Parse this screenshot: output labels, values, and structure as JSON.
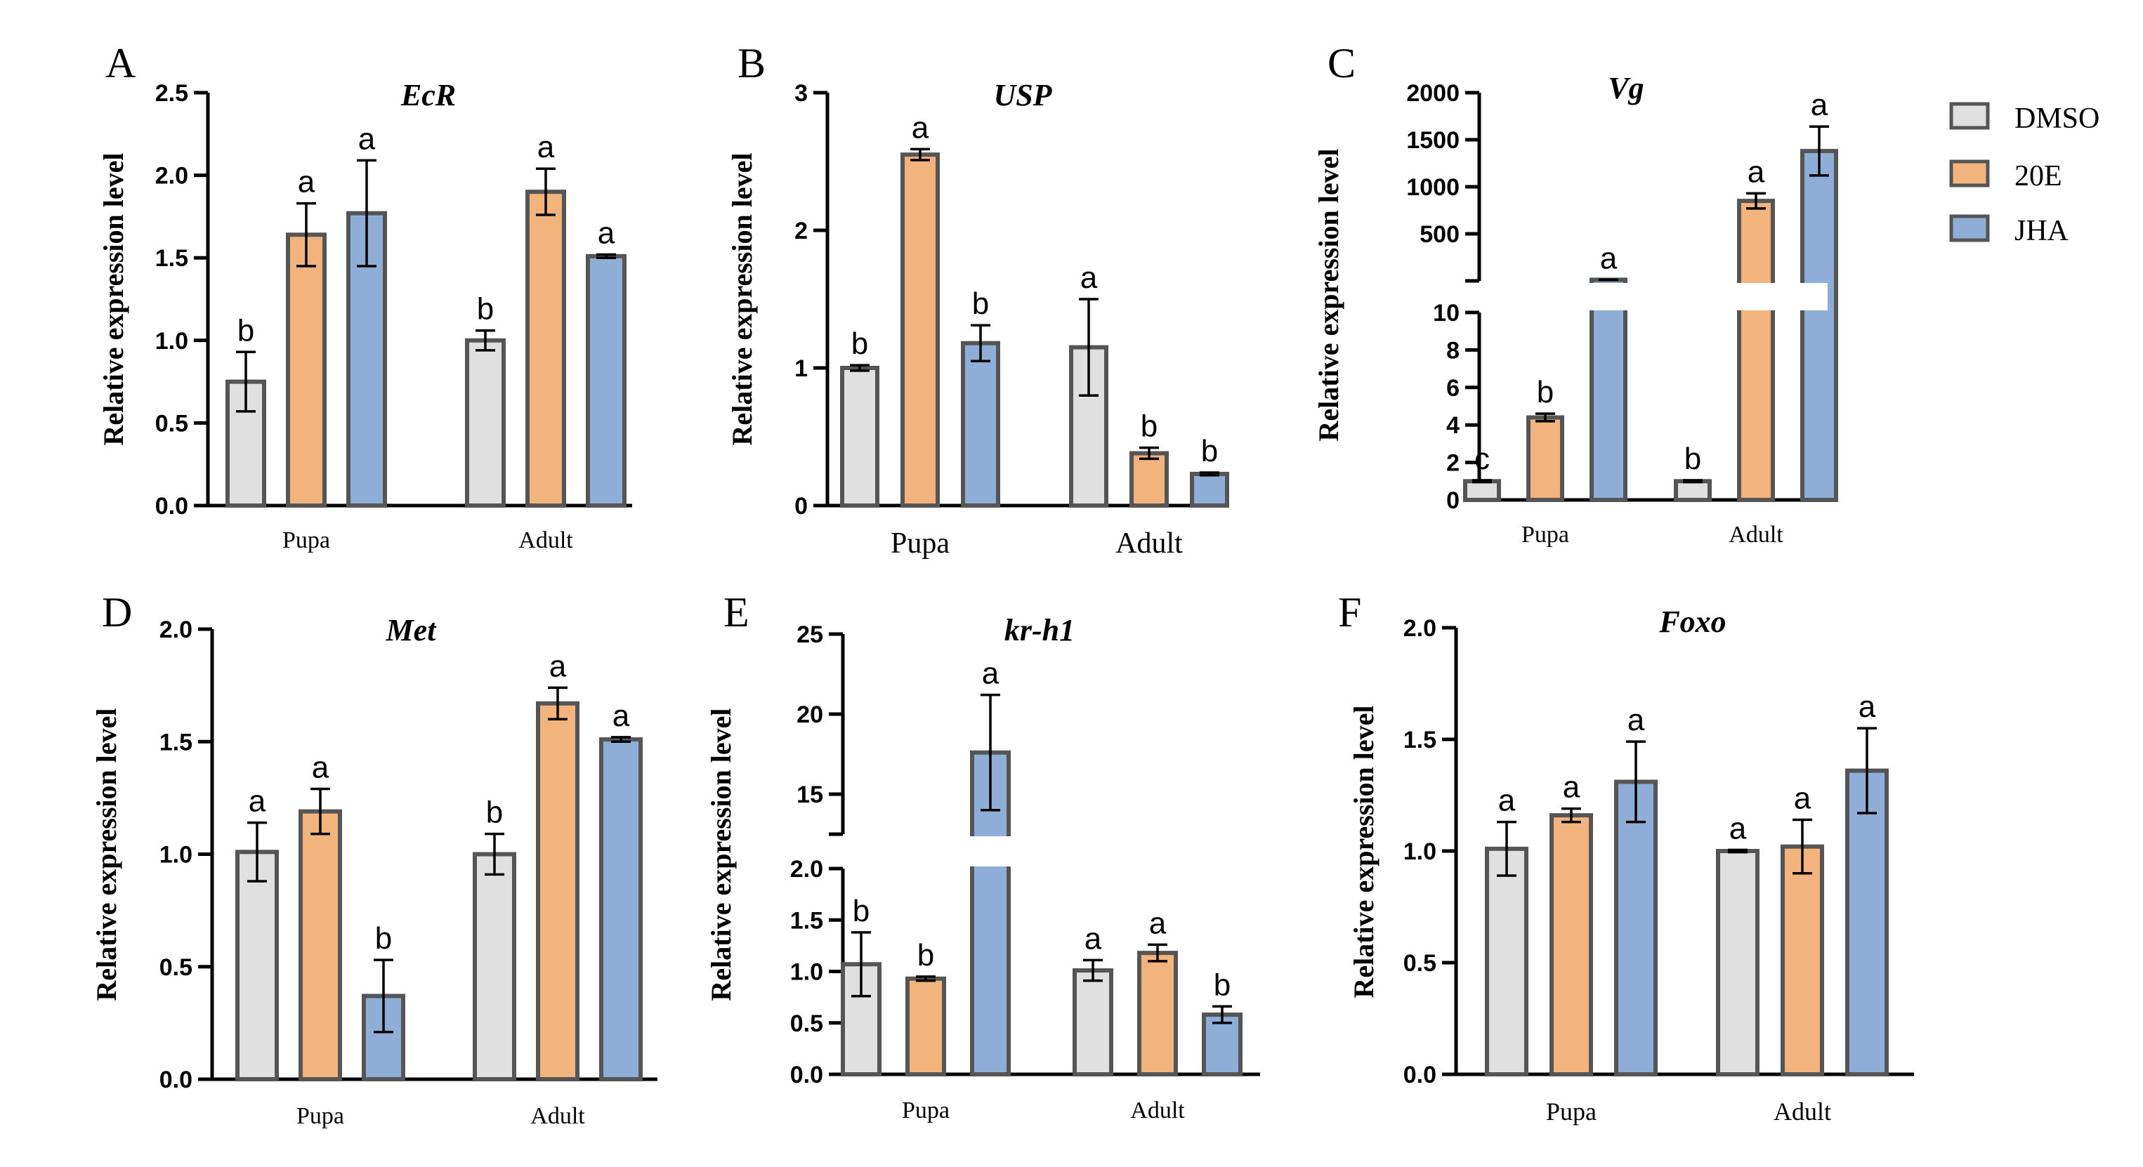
{
  "legend": [
    {
      "name": "DMSO",
      "color": "#e0e0e0"
    },
    {
      "name": "20E",
      "color": "#f2b47c"
    },
    {
      "name": "JHA",
      "color": "#8eaed8"
    }
  ],
  "chart_data": [
    {
      "type": "bar",
      "panel": "A",
      "title": "EcR",
      "ylabel": "Relative expression level",
      "xlabel": "",
      "categories": [
        "Pupa",
        "Adult"
      ],
      "ylim": [
        0,
        2.5
      ],
      "yticks": [
        "0.0",
        "0.5",
        "1.0",
        "1.5",
        "2.0",
        "2.5"
      ],
      "series": [
        {
          "name": "DMSO",
          "values": [
            0.75,
            1.0
          ],
          "errors": [
            0.18,
            0.06
          ],
          "letters": [
            "b",
            "b"
          ]
        },
        {
          "name": "20E",
          "values": [
            1.64,
            1.9
          ],
          "errors": [
            0.19,
            0.14
          ],
          "letters": [
            "a",
            "a"
          ]
        },
        {
          "name": "JHA",
          "values": [
            1.77,
            1.51
          ],
          "errors": [
            0.32,
            0.01
          ],
          "letters": [
            "a",
            "a"
          ]
        }
      ]
    },
    {
      "type": "bar",
      "panel": "B",
      "title": "USP",
      "ylabel": "Relative expression level",
      "xlabel": "",
      "categories": [
        "Pupa",
        "Adult"
      ],
      "ylim": [
        0,
        3
      ],
      "yticks": [
        "0",
        "1",
        "2",
        "3"
      ],
      "series": [
        {
          "name": "DMSO",
          "values": [
            1.0,
            1.15
          ],
          "errors": [
            0.02,
            0.35
          ],
          "letters": [
            "b",
            "a"
          ]
        },
        {
          "name": "20E",
          "values": [
            2.55,
            0.38
          ],
          "errors": [
            0.04,
            0.04
          ],
          "letters": [
            "a",
            "b"
          ]
        },
        {
          "name": "JHA",
          "values": [
            1.18,
            0.23
          ],
          "errors": [
            0.13,
            0.01
          ],
          "letters": [
            "b",
            "b"
          ]
        }
      ]
    },
    {
      "type": "bar",
      "panel": "C",
      "title": "Vg",
      "ylabel": "Relative expression level",
      "xlabel": "",
      "categories": [
        "Pupa",
        "Adult"
      ],
      "broken_axis": {
        "lower": [
          0,
          10
        ],
        "upper": [
          0,
          2000
        ]
      },
      "yticks_lower": [
        "0",
        "2",
        "4",
        "6",
        "8",
        "10"
      ],
      "yticks_upper": [
        "500",
        "1000",
        "1500",
        "2000"
      ],
      "series": [
        {
          "name": "DMSO",
          "values": [
            1.0,
            1.0
          ],
          "errors": [
            0.05,
            0.05
          ],
          "letters": [
            "c",
            "b"
          ]
        },
        {
          "name": "20E",
          "values": [
            4.4,
            850
          ],
          "errors": [
            0.2,
            80
          ],
          "letters": [
            "b",
            "a"
          ]
        },
        {
          "name": "JHA",
          "values": [
            12,
            1380
          ],
          "errors": [
            0.3,
            260
          ],
          "letters": [
            "a",
            "a"
          ]
        }
      ]
    },
    {
      "type": "bar",
      "panel": "D",
      "title": "Met",
      "ylabel": "Relative expression level",
      "xlabel": "",
      "categories": [
        "Pupa",
        "Adult"
      ],
      "ylim": [
        0,
        2.0
      ],
      "yticks": [
        "0.0",
        "0.5",
        "1.0",
        "1.5",
        "2.0"
      ],
      "series": [
        {
          "name": "DMSO",
          "values": [
            1.01,
            1.0
          ],
          "errors": [
            0.13,
            0.09
          ],
          "letters": [
            "a",
            "b"
          ]
        },
        {
          "name": "20E",
          "values": [
            1.19,
            1.67
          ],
          "errors": [
            0.1,
            0.07
          ],
          "letters": [
            "a",
            "a"
          ]
        },
        {
          "name": "JHA",
          "values": [
            0.37,
            1.51
          ],
          "errors": [
            0.16,
            0.01
          ],
          "letters": [
            "b",
            "a"
          ]
        }
      ]
    },
    {
      "type": "bar",
      "panel": "E",
      "title": "kr-h1",
      "ylabel": "Relative expression level",
      "xlabel": "",
      "categories": [
        "Pupa",
        "Adult"
      ],
      "broken_axis": {
        "lower": [
          0,
          2.0
        ],
        "upper": [
          12.5,
          25
        ]
      },
      "yticks_lower": [
        "0.0",
        "0.5",
        "1.0",
        "1.5",
        "2.0"
      ],
      "yticks_upper": [
        "15",
        "20",
        "25"
      ],
      "series": [
        {
          "name": "DMSO",
          "values": [
            1.07,
            1.01
          ],
          "errors": [
            0.31,
            0.1
          ],
          "letters": [
            "b",
            "a"
          ]
        },
        {
          "name": "20E",
          "values": [
            0.93,
            1.18
          ],
          "errors": [
            0.02,
            0.08
          ],
          "letters": [
            "b",
            "a"
          ]
        },
        {
          "name": "JHA",
          "values": [
            17.6,
            0.58
          ],
          "errors": [
            3.6,
            0.08
          ],
          "letters": [
            "a",
            "b"
          ]
        }
      ]
    },
    {
      "type": "bar",
      "panel": "F",
      "title": "Foxo",
      "ylabel": "Relative expression level",
      "xlabel": "",
      "categories": [
        "Pupa",
        "Adult"
      ],
      "ylim": [
        0,
        2.0
      ],
      "yticks": [
        "0.0",
        "0.5",
        "1.0",
        "1.5",
        "2.0"
      ],
      "series": [
        {
          "name": "DMSO",
          "values": [
            1.01,
            1.0
          ],
          "errors": [
            0.12,
            0.005
          ],
          "letters": [
            "a",
            "a"
          ]
        },
        {
          "name": "20E",
          "values": [
            1.16,
            1.02
          ],
          "errors": [
            0.03,
            0.12
          ],
          "letters": [
            "a",
            "a"
          ]
        },
        {
          "name": "JHA",
          "values": [
            1.31,
            1.36
          ],
          "errors": [
            0.18,
            0.19
          ],
          "letters": [
            "a",
            "a"
          ]
        }
      ]
    }
  ]
}
